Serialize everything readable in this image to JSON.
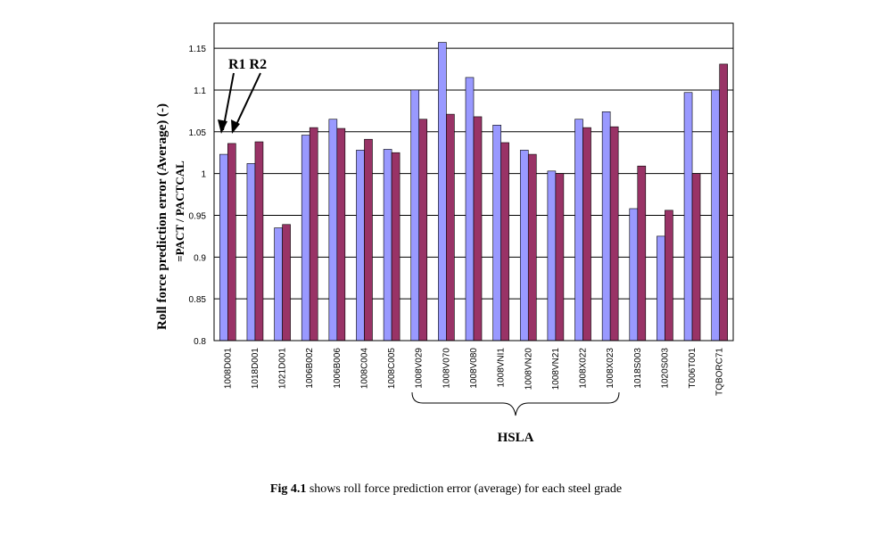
{
  "chart_data": {
    "type": "bar",
    "title": "",
    "xlabel": "",
    "ylabel_main": "Roll force prediction error (Average) (-)",
    "ylabel_formula": "=PACT / PACTCAL",
    "ylim": [
      0.8,
      1.18
    ],
    "yticks": [
      "0.8",
      "0.85",
      "0.9",
      "0.95",
      "1",
      "1.05",
      "1.1",
      "1.15"
    ],
    "grid": true,
    "categories": [
      "1008D001",
      "1018D001",
      "1021D001",
      "1006B002",
      "1006B006",
      "1008C004",
      "1008C005",
      "1008V029",
      "1008V070",
      "1008V080",
      "1008VNI1",
      "1008VN20",
      "1008VN21",
      "1008X022",
      "1008X023",
      "1018S003",
      "1020S003",
      "T006T001",
      "TQBORC71"
    ],
    "series": [
      {
        "name": "R1",
        "color": "#9999ff",
        "values": [
          1.023,
          1.012,
          0.935,
          1.046,
          1.065,
          1.028,
          1.029,
          1.1,
          1.157,
          1.115,
          1.058,
          1.028,
          1.003,
          1.065,
          1.074,
          0.958,
          0.925,
          1.097,
          1.1
        ]
      },
      {
        "name": "R2",
        "color": "#993366",
        "values": [
          1.036,
          1.038,
          0.939,
          1.055,
          1.054,
          1.041,
          1.025,
          1.065,
          1.071,
          1.068,
          1.037,
          1.023,
          1.0,
          1.055,
          1.056,
          1.009,
          0.956,
          1.0,
          1.131
        ]
      }
    ],
    "annotations": {
      "series_labels": "R1 R2",
      "group_label": "HSLA"
    }
  },
  "caption": {
    "fig_label": "Fig 4.1",
    "text": " shows roll force prediction error (average) for each steel grade"
  }
}
